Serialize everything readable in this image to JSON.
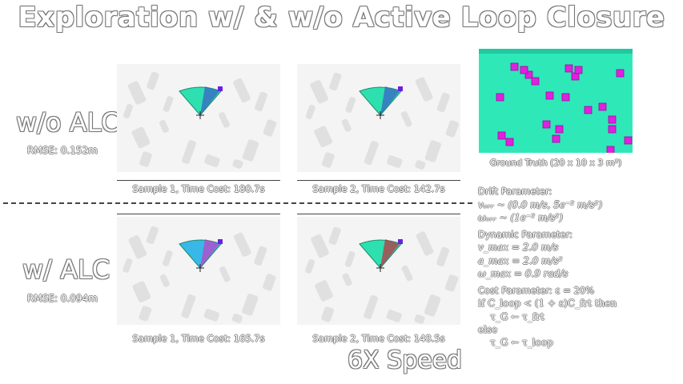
{
  "title": "Exploration w/ & w/o Active Loop Closure",
  "rows": [
    {
      "label": "w/o ALC",
      "rmse": "RMSE: 0.152m",
      "samples": [
        {
          "caption": "Sample 1, Time Cost: 180.7s",
          "view_color": "#2ee0b0",
          "cone_overlay": "#3c5ac8"
        },
        {
          "caption": "Sample 2, Time Cost: 142.7s",
          "view_color": "#2ee0b0",
          "cone_overlay": "#3c5ac8"
        }
      ]
    },
    {
      "label": "w/ ALC",
      "rmse": "RMSE: 0.094m",
      "samples": [
        {
          "caption": "Sample 1, Time Cost: 165.7s",
          "view_color": "#38b8e8",
          "cone_overlay": "#c83cc8"
        },
        {
          "caption": "Sample 2, Time Cost: 148.5s",
          "view_color": "#2ee0b0",
          "cone_overlay": "#c8283c"
        }
      ]
    }
  ],
  "ground_truth": {
    "caption": "Ground Truth (20 x 10 x 3 m³)",
    "floor_color": "#2ee8b8",
    "obstacle_color": "#e020e0"
  },
  "params": {
    "drift_title": "Drift Parameter:",
    "drift_lines": [
      "vₑᵣᵣ ~ (0.0 m/s, 5e⁻² m/s²)",
      "ωₑᵣᵣ ~ (1e⁻² m/s²)"
    ],
    "dynamic_title": "Dynamic Parameter:",
    "dynamic_lines": [
      "v_max = 2.0 m/s",
      "a_max = 2.0 m/s²",
      "ω_max = 0.9 rad/s"
    ],
    "cost_line": "Cost Parameter: ε = 20%",
    "algorithm": [
      "if C_loop < (1 + ε)C_frt then",
      "    τ_G ← τ_frt",
      "else",
      "    τ_G ← τ_loop"
    ]
  },
  "speed": "6X Speed"
}
